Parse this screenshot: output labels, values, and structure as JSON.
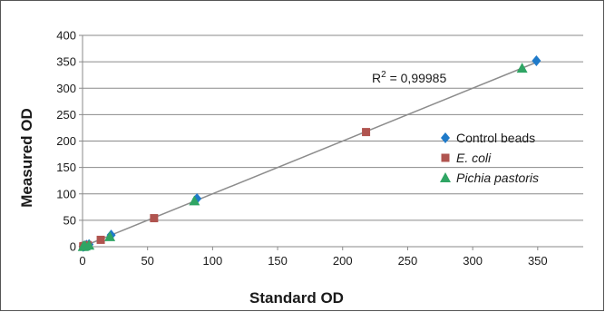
{
  "chart_data": {
    "type": "scatter",
    "xlabel": "Standard OD",
    "ylabel": "Measured OD",
    "xlim": [
      0,
      385
    ],
    "ylim": [
      0,
      400
    ],
    "x_ticks": [
      "0",
      "50",
      "100",
      "150",
      "200",
      "250",
      "300",
      "350"
    ],
    "y_ticks": [
      "0",
      "50",
      "100",
      "150",
      "200",
      "250",
      "300",
      "350",
      "400"
    ],
    "grid": "horizontal",
    "legend_position": "right",
    "annotation": {
      "prefix": "R",
      "superscript": "2",
      "text": " = 0,99985"
    },
    "trendline": {
      "x": [
        0,
        350
      ],
      "y": [
        0,
        350
      ],
      "color": "#8c8c8c"
    },
    "series": [
      {
        "name": "Control beads",
        "italic": false,
        "marker": "diamond",
        "color": "#1f7ac9",
        "points": [
          [
            0.5,
            0.5
          ],
          [
            1.5,
            1.5
          ],
          [
            3,
            3
          ],
          [
            5,
            4
          ],
          [
            22,
            22
          ],
          [
            88,
            91
          ],
          [
            349,
            352
          ]
        ]
      },
      {
        "name": "E. coli",
        "italic": true,
        "marker": "square",
        "color": "#b0544f",
        "points": [
          [
            0.5,
            0.5
          ],
          [
            1,
            1
          ],
          [
            2,
            1.5
          ],
          [
            4,
            3
          ],
          [
            14,
            13
          ],
          [
            55,
            54
          ],
          [
            218,
            217
          ]
        ]
      },
      {
        "name": "Pichia pastoris",
        "italic": true,
        "marker": "triangle",
        "color": "#2fa564",
        "points": [
          [
            0.5,
            0.5
          ],
          [
            1,
            1
          ],
          [
            2,
            1.5
          ],
          [
            5,
            3
          ],
          [
            21,
            19
          ],
          [
            86,
            87
          ],
          [
            338,
            338
          ]
        ]
      }
    ]
  }
}
